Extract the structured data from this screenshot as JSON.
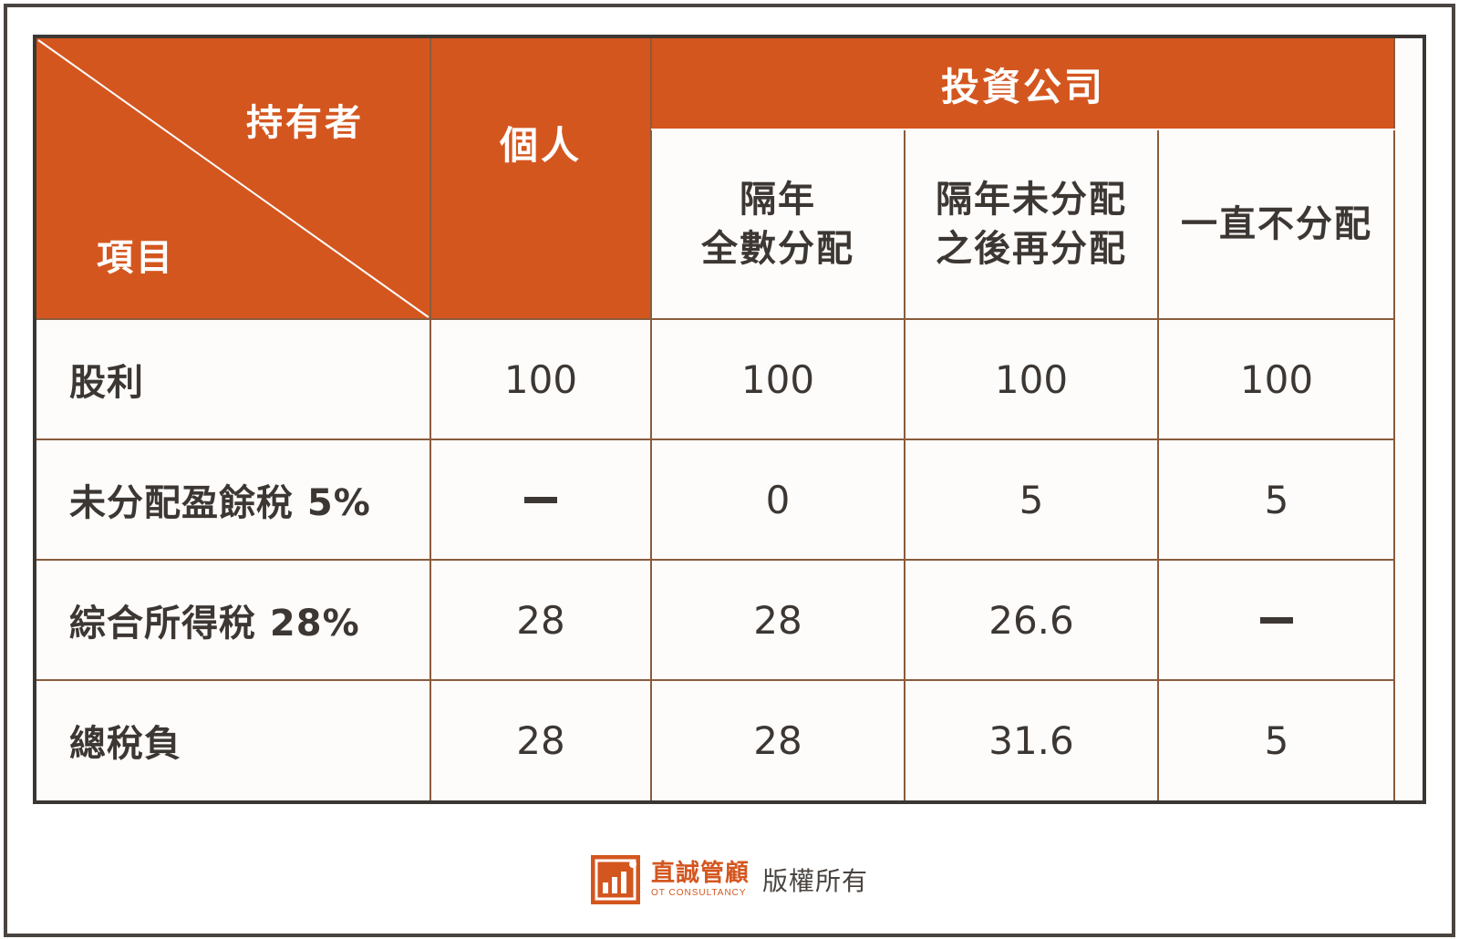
{
  "table": {
    "corner": {
      "top_label": "持有者",
      "bottom_label": "項目"
    },
    "columns": {
      "individual": "個人",
      "company_group": "投資公司",
      "company_sub": [
        {
          "line1": "隔年",
          "line2": "全數分配"
        },
        {
          "line1": "隔年未分配",
          "line2": "之後再分配"
        },
        {
          "line1": "一直不分配",
          "line2": ""
        }
      ]
    },
    "rows": [
      {
        "label": "股利",
        "values": [
          "100",
          "100",
          "100",
          "100"
        ]
      },
      {
        "label": "未分配盈餘稅 5%",
        "values": [
          "—",
          "0",
          "5",
          "5"
        ]
      },
      {
        "label": "綜合所得稅 28%",
        "values": [
          "28",
          "28",
          "26.6",
          "—"
        ]
      },
      {
        "label": "總稅負",
        "values": [
          "28",
          "28",
          "31.6",
          "5"
        ]
      }
    ]
  },
  "footer": {
    "brand_name": "直誠管顧",
    "brand_sub": "OT CONSULTANCY",
    "copyright": "版權所有",
    "brand_color": "#d4561f",
    "logo_icon": "bar-chart-logo-icon"
  },
  "colors": {
    "header_bg": "#d4561f",
    "header_text": "#ffffff",
    "body_text": "#3d3733",
    "grid_line": "#8a5b3c"
  }
}
